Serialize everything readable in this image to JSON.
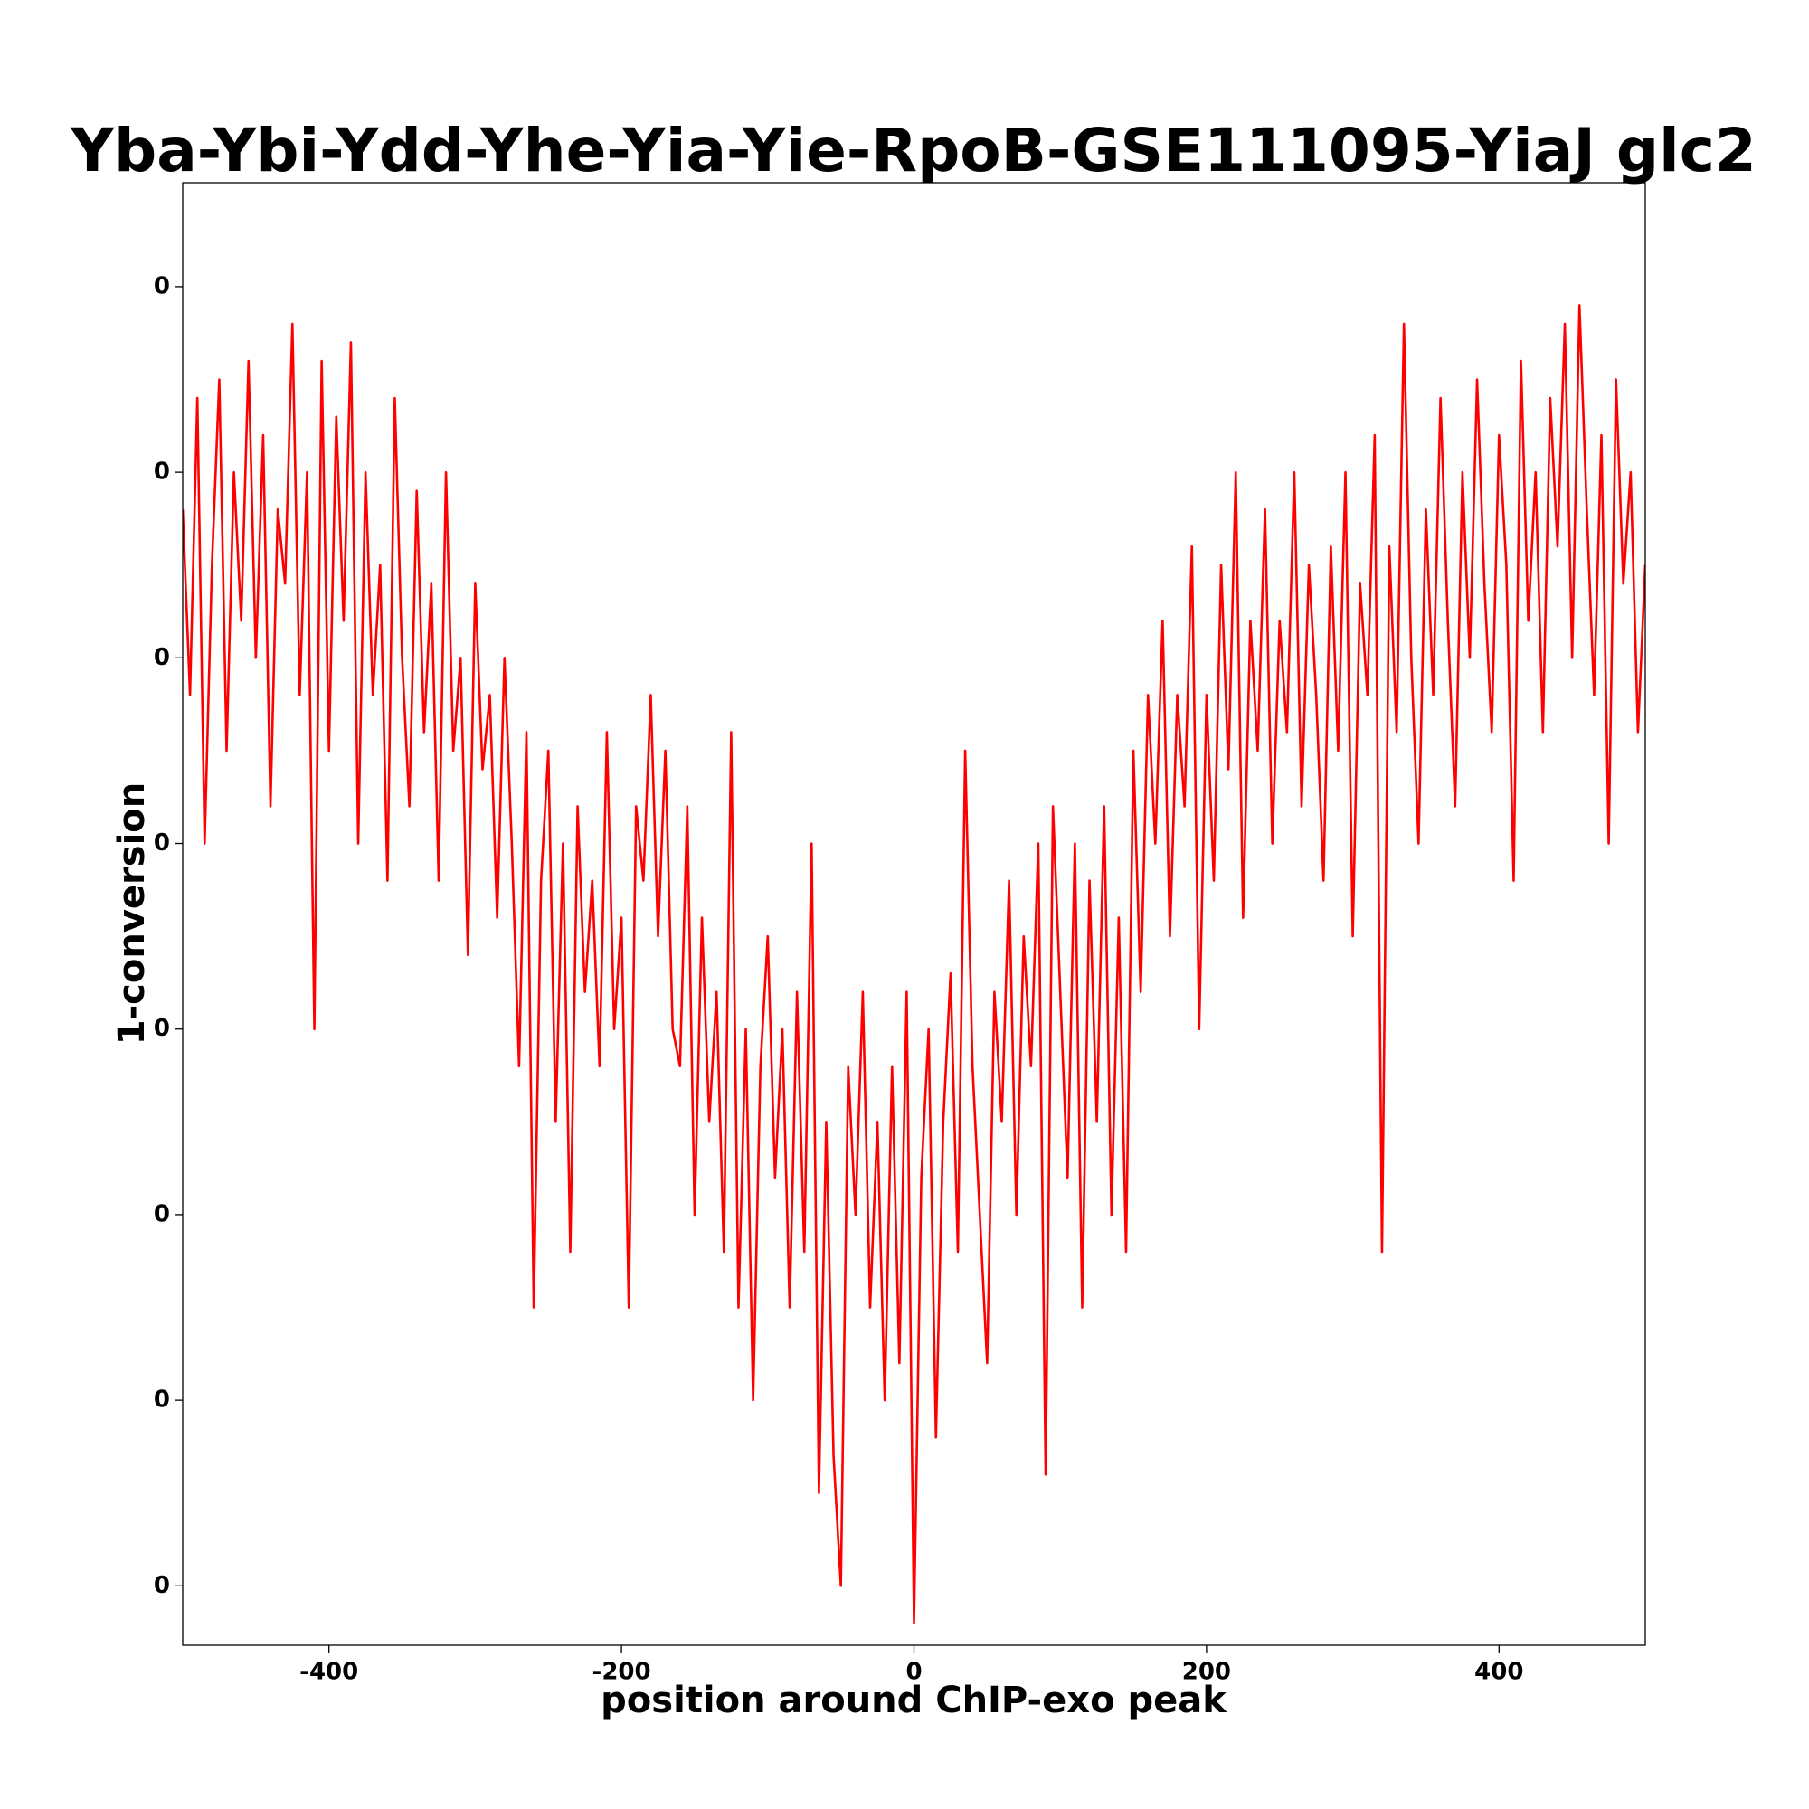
{
  "chart_data": {
    "type": "line",
    "title": "Yba-Ybi-Ydd-Yhe-Yia-Yie-RpoB-GSE111095-YiaJ glc2",
    "x_label": "position around ChIP-exo peak",
    "y_label": "1-conversion",
    "xlim": [
      -500,
      500
    ],
    "xticks": [
      -400,
      -200,
      0,
      200,
      400
    ],
    "ylim": [
      0.999268,
      1.000056
    ],
    "yticks": [
      {
        "value": 0.9993,
        "label": "0"
      },
      {
        "value": 0.9994,
        "label": "0"
      },
      {
        "value": 0.9995,
        "label": "0"
      },
      {
        "value": 0.9996,
        "label": "0"
      },
      {
        "value": 0.9997,
        "label": "0"
      },
      {
        "value": 0.9998,
        "label": "0"
      },
      {
        "value": 0.9999,
        "label": "0"
      },
      {
        "value": 1.0,
        "label": "0"
      }
    ],
    "x": [
      -500,
      -495,
      -490,
      -485,
      -480,
      -475,
      -470,
      -465,
      -460,
      -455,
      -450,
      -445,
      -440,
      -435,
      -430,
      -425,
      -420,
      -415,
      -410,
      -405,
      -400,
      -395,
      -390,
      -385,
      -380,
      -375,
      -370,
      -365,
      -360,
      -355,
      -350,
      -345,
      -340,
      -335,
      -330,
      -325,
      -320,
      -315,
      -310,
      -305,
      -300,
      -295,
      -290,
      -285,
      -280,
      -275,
      -270,
      -265,
      -260,
      -255,
      -250,
      -245,
      -240,
      -235,
      -230,
      -225,
      -220,
      -215,
      -210,
      -205,
      -200,
      -195,
      -190,
      -185,
      -180,
      -175,
      -170,
      -165,
      -160,
      -155,
      -150,
      -145,
      -140,
      -135,
      -130,
      -125,
      -120,
      -115,
      -110,
      -105,
      -100,
      -95,
      -90,
      -85,
      -80,
      -75,
      -70,
      -65,
      -60,
      -55,
      -50,
      -45,
      -40,
      -35,
      -30,
      -25,
      -20,
      -15,
      -10,
      -5,
      0,
      5,
      10,
      15,
      20,
      25,
      30,
      35,
      40,
      45,
      50,
      55,
      60,
      65,
      70,
      75,
      80,
      85,
      90,
      95,
      100,
      105,
      110,
      115,
      120,
      125,
      130,
      135,
      140,
      145,
      150,
      155,
      160,
      165,
      170,
      175,
      180,
      185,
      190,
      195,
      200,
      205,
      210,
      215,
      220,
      225,
      230,
      235,
      240,
      245,
      250,
      255,
      260,
      265,
      270,
      275,
      280,
      285,
      290,
      295,
      300,
      305,
      310,
      315,
      320,
      325,
      330,
      335,
      340,
      345,
      350,
      355,
      360,
      365,
      370,
      375,
      380,
      385,
      390,
      395,
      400,
      405,
      410,
      415,
      420,
      425,
      430,
      435,
      440,
      445,
      450,
      455,
      460,
      465,
      470,
      475,
      480,
      485,
      490,
      495,
      500
    ],
    "series": [
      {
        "name": "1-conversion",
        "color": "#ff0000",
        "values": [
          0.99988,
          0.99978,
          0.99994,
          0.9997,
          0.99985,
          0.99995,
          0.99975,
          0.9999,
          0.99982,
          0.99996,
          0.9998,
          0.99992,
          0.99972,
          0.99988,
          0.99984,
          0.99998,
          0.99978,
          0.9999,
          0.9996,
          0.99996,
          0.99975,
          0.99993,
          0.99982,
          0.99997,
          0.9997,
          0.9999,
          0.99978,
          0.99985,
          0.99968,
          0.99994,
          0.9998,
          0.99972,
          0.99989,
          0.99976,
          0.99984,
          0.99968,
          0.9999,
          0.99975,
          0.9998,
          0.99964,
          0.99984,
          0.99974,
          0.99978,
          0.99966,
          0.9998,
          0.9997,
          0.99958,
          0.99976,
          0.99945,
          0.99968,
          0.99975,
          0.99955,
          0.9997,
          0.99948,
          0.99972,
          0.99962,
          0.99968,
          0.99958,
          0.99976,
          0.9996,
          0.99966,
          0.99945,
          0.99972,
          0.99968,
          0.99978,
          0.99965,
          0.99975,
          0.9996,
          0.99958,
          0.99972,
          0.9995,
          0.99966,
          0.99955,
          0.99962,
          0.99948,
          0.99976,
          0.99945,
          0.9996,
          0.9994,
          0.99958,
          0.99965,
          0.99952,
          0.9996,
          0.99945,
          0.99962,
          0.99948,
          0.9997,
          0.99935,
          0.99955,
          0.99937,
          0.9993,
          0.99958,
          0.9995,
          0.99962,
          0.99945,
          0.99955,
          0.9994,
          0.99958,
          0.99942,
          0.99962,
          0.99928,
          0.99952,
          0.9996,
          0.99938,
          0.99955,
          0.99963,
          0.99948,
          0.99975,
          0.99958,
          0.9995,
          0.99942,
          0.99962,
          0.99955,
          0.99968,
          0.9995,
          0.99965,
          0.99958,
          0.9997,
          0.99936,
          0.99972,
          0.99962,
          0.99952,
          0.9997,
          0.99945,
          0.99968,
          0.99955,
          0.99972,
          0.9995,
          0.99966,
          0.99948,
          0.99975,
          0.99962,
          0.99978,
          0.9997,
          0.99982,
          0.99965,
          0.99978,
          0.99972,
          0.99986,
          0.9996,
          0.99978,
          0.99968,
          0.99985,
          0.99974,
          0.9999,
          0.99966,
          0.99982,
          0.99975,
          0.99988,
          0.9997,
          0.99982,
          0.99976,
          0.9999,
          0.99972,
          0.99985,
          0.99978,
          0.99968,
          0.99986,
          0.99975,
          0.9999,
          0.99965,
          0.99984,
          0.99978,
          0.99992,
          0.99948,
          0.99986,
          0.99976,
          0.99998,
          0.9998,
          0.9997,
          0.99988,
          0.99978,
          0.99994,
          0.99982,
          0.99972,
          0.9999,
          0.9998,
          0.99995,
          0.99984,
          0.99976,
          0.99992,
          0.99985,
          0.99968,
          0.99996,
          0.99982,
          0.9999,
          0.99976,
          0.99994,
          0.99986,
          0.99998,
          0.9998,
          0.99999,
          0.99988,
          0.99978,
          0.99992,
          0.9997,
          0.99995,
          0.99984,
          0.9999,
          0.99976,
          0.99985
        ]
      }
    ]
  }
}
